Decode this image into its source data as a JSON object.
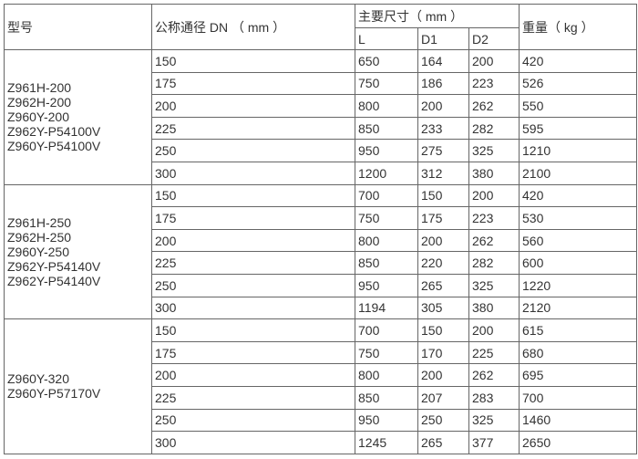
{
  "header": {
    "model": "型号",
    "dn": "公称通径 DN （ mm ）",
    "dims": "主要尺寸（ mm ）",
    "L": "L",
    "D1": "D1",
    "D2": "D2",
    "weight": "重量（ kg ）"
  },
  "groups": [
    {
      "models": [
        "Z961H-200",
        "Z962H-200",
        "Z960Y-200",
        "Z962Y-P54100V",
        "Z960Y-P54100V"
      ],
      "rows": [
        [
          "150",
          "650",
          "164",
          "200",
          "420"
        ],
        [
          "175",
          "750",
          "186",
          "223",
          "526"
        ],
        [
          "200",
          "800",
          "200",
          "262",
          "550"
        ],
        [
          "225",
          "850",
          "233",
          "282",
          "595"
        ],
        [
          "250",
          "950",
          "275",
          "325",
          "1210"
        ],
        [
          "300",
          "1200",
          "312",
          "380",
          "2100"
        ]
      ]
    },
    {
      "models": [
        "Z961H-250",
        "Z962H-250",
        "Z960Y-250",
        "Z962Y-P54140V",
        "Z962Y-P54140V"
      ],
      "rows": [
        [
          "150",
          "700",
          "150",
          "200",
          "420"
        ],
        [
          "175",
          "750",
          "175",
          "223",
          "530"
        ],
        [
          "200",
          "800",
          "200",
          "262",
          "560"
        ],
        [
          "225",
          "850",
          "220",
          "282",
          "600"
        ],
        [
          "250",
          "950",
          "265",
          "325",
          "1220"
        ],
        [
          "300",
          "1194",
          "305",
          "380",
          "2120"
        ]
      ]
    },
    {
      "models": [
        "Z960Y-320",
        "Z960Y-P57170V"
      ],
      "rows": [
        [
          "150",
          "700",
          "150",
          "200",
          "615"
        ],
        [
          "175",
          "750",
          "170",
          "225",
          "680"
        ],
        [
          "200",
          "800",
          "200",
          "262",
          "695"
        ],
        [
          "225",
          "850",
          "207",
          "283",
          "700"
        ],
        [
          "250",
          "950",
          "250",
          "325",
          "1460"
        ],
        [
          "300",
          "1245",
          "265",
          "377",
          "2650"
        ]
      ]
    }
  ]
}
